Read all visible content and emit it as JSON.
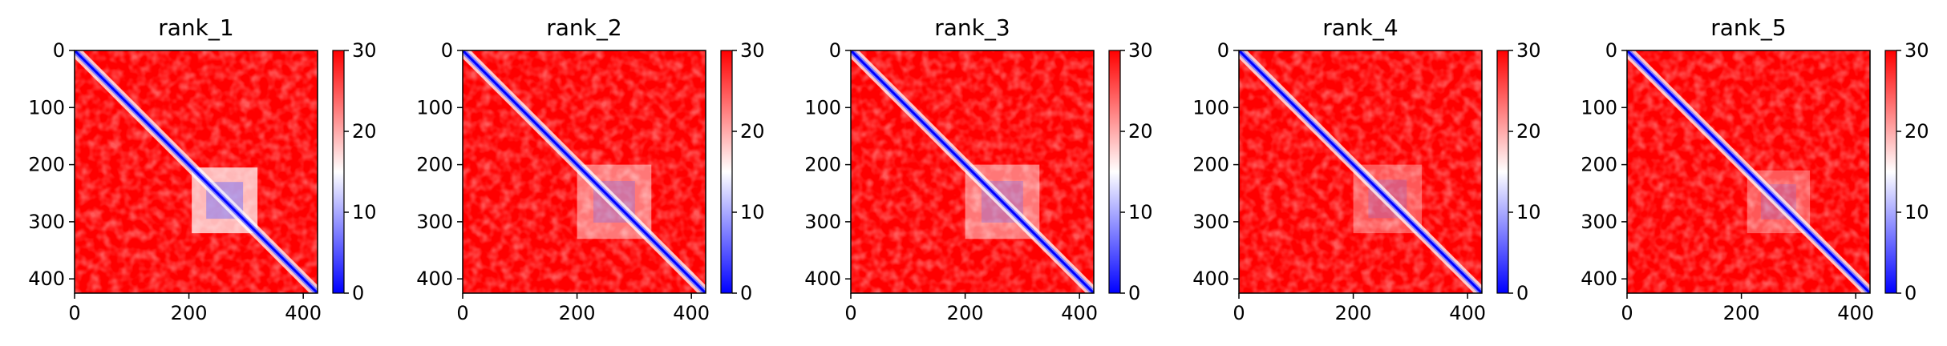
{
  "chart_data": {
    "type": "heatmap",
    "description_note": "",
    "colormap": {
      "low": "#0000ff",
      "mid": "#ffffff",
      "high": "#ff0000"
    },
    "panels": [
      {
        "title": "rank_1",
        "xlim": [
          0,
          425
        ],
        "ylim": [
          425,
          0
        ],
        "xticks": [
          0,
          200,
          400
        ],
        "yticks": [
          0,
          100,
          200,
          300,
          400
        ],
        "colorbar": {
          "min": 0,
          "max": 30,
          "ticks": [
            0,
            10,
            20,
            30
          ]
        },
        "diagonal": "blue",
        "blocks": [
          {
            "from": 205,
            "to": 320,
            "level": "strong"
          }
        ]
      },
      {
        "title": "rank_2",
        "xlim": [
          0,
          425
        ],
        "ylim": [
          425,
          0
        ],
        "xticks": [
          0,
          200,
          400
        ],
        "yticks": [
          0,
          100,
          200,
          300,
          400
        ],
        "colorbar": {
          "min": 0,
          "max": 30,
          "ticks": [
            0,
            10,
            20,
            30
          ]
        },
        "diagonal": "blue",
        "blocks": [
          {
            "from": 200,
            "to": 330,
            "level": "moderate"
          }
        ]
      },
      {
        "title": "rank_3",
        "xlim": [
          0,
          425
        ],
        "ylim": [
          425,
          0
        ],
        "xticks": [
          0,
          200,
          400
        ],
        "yticks": [
          0,
          100,
          200,
          300,
          400
        ],
        "colorbar": {
          "min": 0,
          "max": 30,
          "ticks": [
            0,
            10,
            20,
            30
          ]
        },
        "diagonal": "blue",
        "blocks": [
          {
            "from": 200,
            "to": 330,
            "level": "moderate"
          }
        ]
      },
      {
        "title": "rank_4",
        "xlim": [
          0,
          425
        ],
        "ylim": [
          425,
          0
        ],
        "xticks": [
          0,
          200,
          400
        ],
        "yticks": [
          0,
          100,
          200,
          300,
          400
        ],
        "colorbar": {
          "min": 0,
          "max": 30,
          "ticks": [
            0,
            10,
            20,
            30
          ]
        },
        "diagonal": "blue",
        "blocks": [
          {
            "from": 200,
            "to": 320,
            "level": "weak"
          }
        ]
      },
      {
        "title": "rank_5",
        "xlim": [
          0,
          425
        ],
        "ylim": [
          425,
          0
        ],
        "xticks": [
          0,
          200,
          400
        ],
        "yticks": [
          0,
          100,
          200,
          300,
          400
        ],
        "colorbar": {
          "min": 0,
          "max": 30,
          "ticks": [
            0,
            10,
            20,
            30
          ]
        },
        "diagonal": "blue",
        "blocks": [
          {
            "from": 210,
            "to": 320,
            "level": "weak"
          }
        ]
      }
    ]
  }
}
